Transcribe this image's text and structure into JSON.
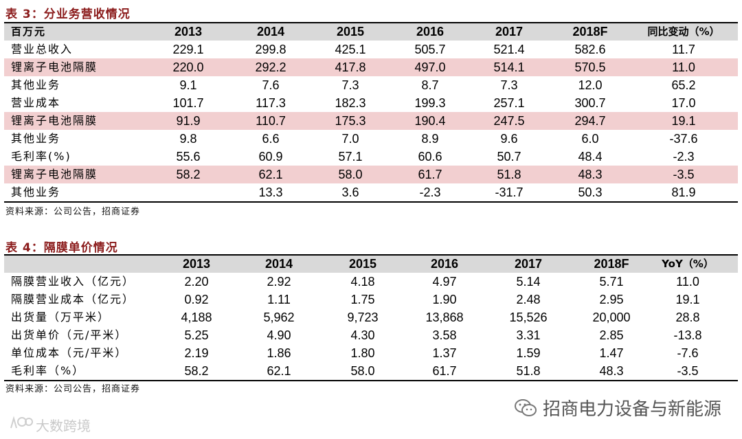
{
  "table3": {
    "title": "表 3：分业务营收情况",
    "header": [
      "百万元",
      "2013",
      "2014",
      "2015",
      "2016",
      "2017",
      "2018F",
      "同比变动（%）"
    ],
    "rows": [
      {
        "label": "营业总收入",
        "values": [
          "229.1",
          "299.8",
          "425.1",
          "505.7",
          "521.4",
          "582.6",
          "11.7"
        ]
      },
      {
        "label": "锂离子电池隔膜",
        "values": [
          "220.0",
          "292.2",
          "417.8",
          "497.0",
          "514.1",
          "570.5",
          "11.0"
        ]
      },
      {
        "label": "其他业务",
        "values": [
          "9.1",
          "7.6",
          "7.3",
          "8.7",
          "7.3",
          "12.0",
          "65.2"
        ]
      },
      {
        "label": "营业成本",
        "values": [
          "101.7",
          "117.3",
          "182.3",
          "199.3",
          "257.1",
          "300.7",
          "17.0"
        ]
      },
      {
        "label": "锂离子电池隔膜",
        "values": [
          "91.9",
          "110.7",
          "175.3",
          "190.4",
          "247.5",
          "294.7",
          "19.1"
        ]
      },
      {
        "label": "其他业务",
        "values": [
          "9.8",
          "6.6",
          "7.0",
          "8.9",
          "9.6",
          "6.0",
          "-37.6"
        ]
      },
      {
        "label": "毛利率(%)",
        "values": [
          "55.6",
          "60.9",
          "57.1",
          "60.6",
          "50.7",
          "48.4",
          "-2.3"
        ]
      },
      {
        "label": "锂离子电池隔膜",
        "values": [
          "58.2",
          "62.1",
          "58.0",
          "61.7",
          "51.8",
          "48.3",
          "-3.5"
        ]
      },
      {
        "label": "其他业务",
        "values": [
          "",
          "13.3",
          "3.6",
          "-2.3",
          "-31.7",
          "50.3",
          "81.9"
        ]
      }
    ],
    "source": "资料来源：公司公告，招商证券"
  },
  "table4": {
    "title": "表 4：隔膜单价情况",
    "header": [
      "",
      "2013",
      "2014",
      "2015",
      "2016",
      "2017",
      "2018F",
      "YoY（%）"
    ],
    "rows": [
      {
        "label": "隔膜营业收入（亿元）",
        "values": [
          "2.20",
          "2.92",
          "4.18",
          "4.97",
          "5.14",
          "5.71",
          "11.0"
        ]
      },
      {
        "label": "隔膜营业成本（亿元）",
        "values": [
          "0.92",
          "1.11",
          "1.75",
          "1.90",
          "2.48",
          "2.95",
          "19.1"
        ]
      },
      {
        "label": "出货量（万平米）",
        "values": [
          "4,188",
          "5,962",
          "9,723",
          "13,868",
          "15,526",
          "20,000",
          "28.8"
        ]
      },
      {
        "label": "出货单价（元/平米）",
        "values": [
          "5.25",
          "4.90",
          "4.30",
          "3.58",
          "3.31",
          "2.85",
          "-13.8"
        ]
      },
      {
        "label": "单位成本（元/平米）",
        "values": [
          "2.19",
          "1.86",
          "1.80",
          "1.37",
          "1.59",
          "1.47",
          "-7.6"
        ]
      },
      {
        "label": "毛利率（%）",
        "values": [
          "58.2",
          "62.1",
          "58.0",
          "61.7",
          "51.8",
          "48.3",
          "-3.5"
        ]
      }
    ],
    "source": "资料来源：公司公告，招商证券"
  },
  "watermark": {
    "text": "招商电力设备与新能源",
    "icon": "wechat-icon"
  },
  "corner_mark": {
    "text": "大数跨境",
    "icon": "logo-mark-icon"
  },
  "colors": {
    "title_red": "#8b1b1b",
    "shade_pink": "#f2cfd0",
    "header_gray": "#d9d9d9"
  }
}
